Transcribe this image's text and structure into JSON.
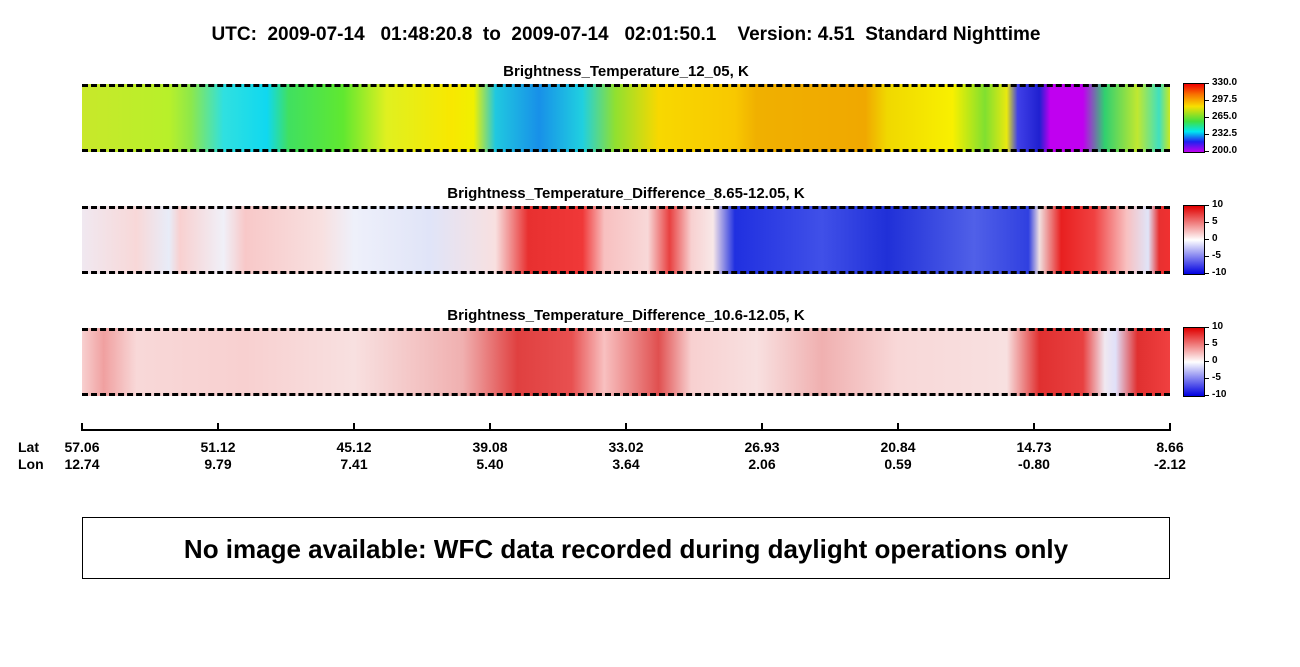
{
  "header": {
    "title": "UTC:  2009-07-14   01:48:20.8  to  2009-07-14   02:01:50.1    Version: 4.51  Standard Nighttime"
  },
  "panels": [
    {
      "title": "Brightness_Temperature_12_05, K",
      "colorbar_ticks": [
        "330.0",
        "297.5",
        "265.0",
        "232.5",
        "200.0"
      ]
    },
    {
      "title": "Brightness_Temperature_Difference_8.65-12.05, K",
      "colorbar_ticks": [
        "10",
        "5",
        "0",
        "-5",
        "-10"
      ]
    },
    {
      "title": "Brightness_Temperature_Difference_10.6-12.05, K",
      "colorbar_ticks": [
        "10",
        "5",
        "0",
        "-5",
        "-10"
      ]
    }
  ],
  "axis": {
    "lat_label": "Lat",
    "lon_label": "Lon",
    "lat": [
      "57.06",
      "51.12",
      "45.12",
      "39.08",
      "33.02",
      "26.93",
      "20.84",
      "14.73",
      "8.66"
    ],
    "lon": [
      "12.74",
      "9.79",
      "7.41",
      "5.40",
      "3.64",
      "2.06",
      "0.59",
      "-0.80",
      "-2.12"
    ]
  },
  "message": "No image available: WFC data recorded during daylight operations only"
}
